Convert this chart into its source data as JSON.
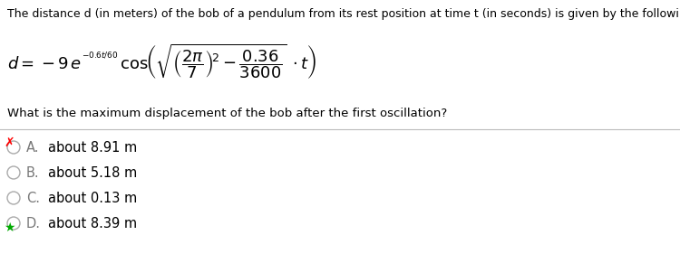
{
  "title_text": "The distance d (in meters) of the bob of a pendulum from its rest position at time t (in seconds) is given by the following formula.",
  "question_text": "What is the maximum displacement of the bob after the first oscillation?",
  "choices": [
    {
      "label": "A.",
      "text": "about 8.91 m",
      "selected": false,
      "wrong": true
    },
    {
      "label": "B.",
      "text": "about 5.18 m",
      "selected": false,
      "wrong": false
    },
    {
      "label": "C.",
      "text": "about 0.13 m",
      "selected": false,
      "wrong": false
    },
    {
      "label": "D.",
      "text": "about 8.39 m",
      "selected": true,
      "wrong": false
    }
  ],
  "bg_color": "#ffffff",
  "text_color": "#000000",
  "gray_color": "#777777",
  "divider_color": "#bbbbbb",
  "title_fontsize": 9.0,
  "question_fontsize": 9.5,
  "choice_fontsize": 10.5,
  "formula_fontsize": 13.0
}
